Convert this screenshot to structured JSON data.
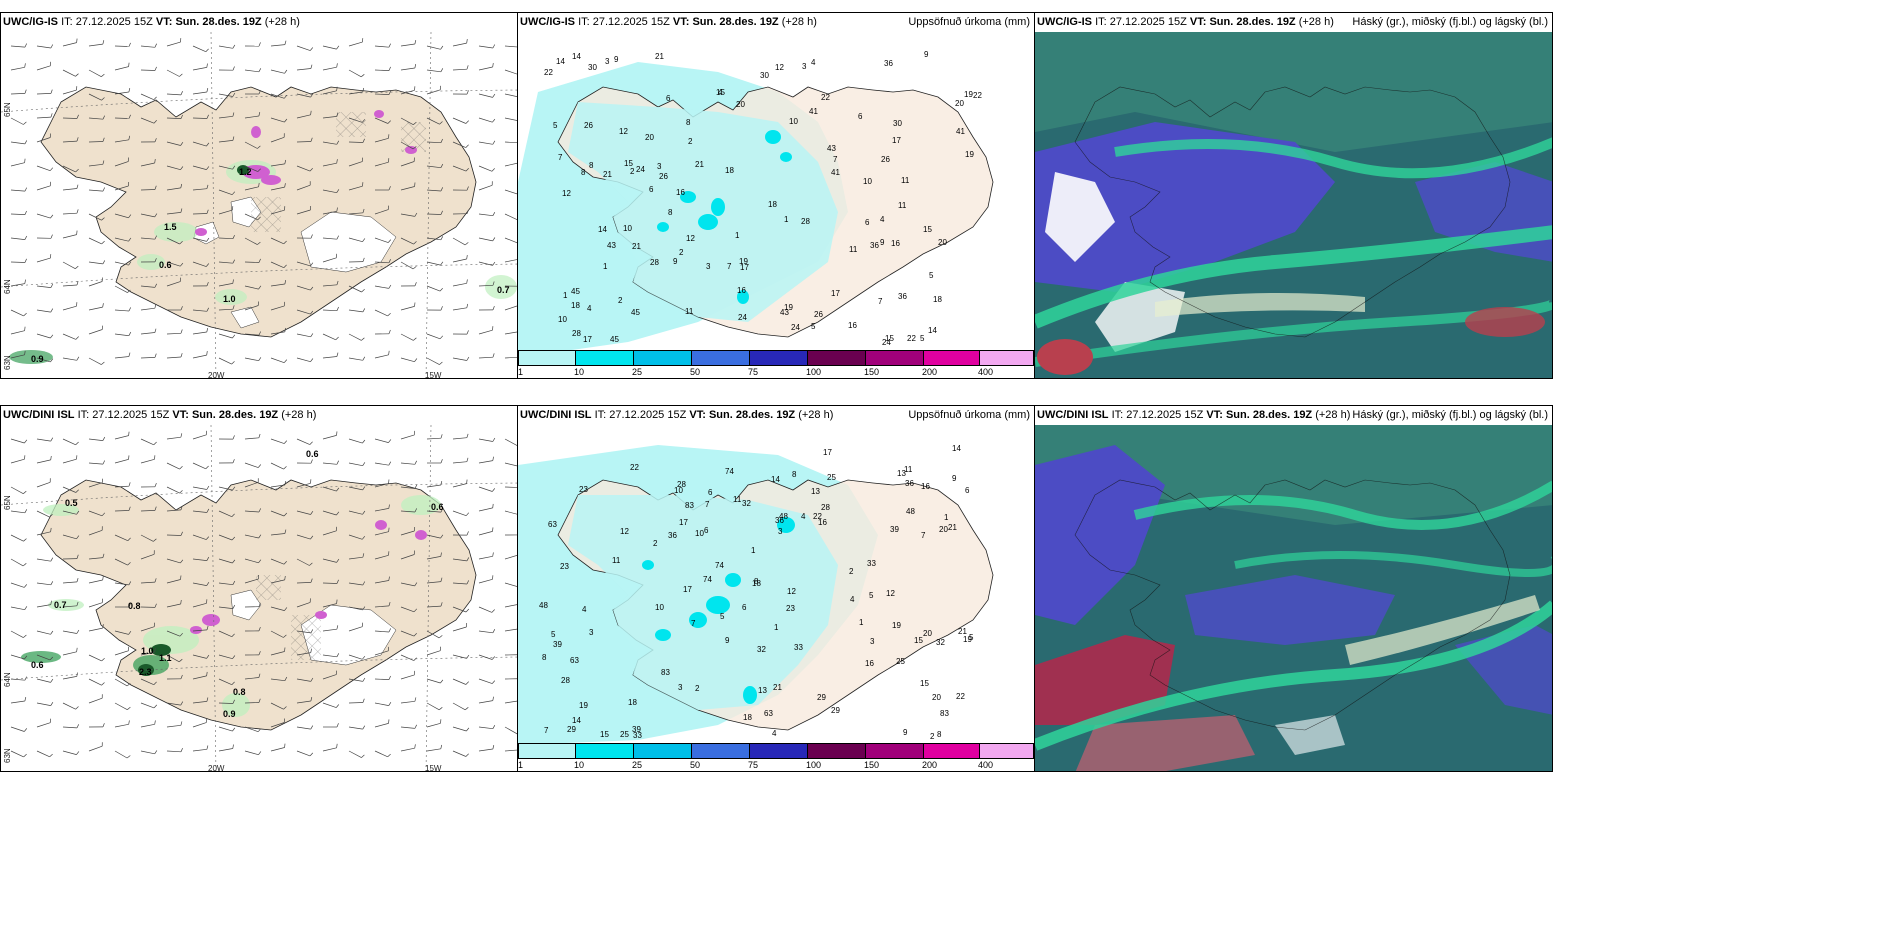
{
  "panels": [
    {
      "model": "UWC/IG-IS",
      "it_label": "IT:",
      "it_value": "27.12.2025 15Z",
      "vt_label": "VT:",
      "vt_value": "Sun. 28.des. 19Z",
      "lead": "(+28 h)",
      "right_title": "",
      "lat_labels": [
        "65N",
        "64N",
        "63N"
      ],
      "lon_labels": [
        "20W",
        "15W"
      ],
      "values": [
        "0.6",
        "1.5",
        "1.2",
        "1.0",
        "0.7",
        "0.9"
      ]
    },
    {
      "model": "UWC/IG-IS",
      "it_label": "IT:",
      "it_value": "27.12.2025 15Z",
      "vt_label": "VT:",
      "vt_value": "Sun. 28.des. 19Z",
      "lead": "(+28 h)",
      "right_title": "Uppsöfnuð úrkoma (mm)",
      "values": [
        "1",
        "2",
        "3",
        "4",
        "5",
        "6",
        "7",
        "8",
        "9",
        "10",
        "11",
        "12",
        "14",
        "15",
        "16",
        "17",
        "18",
        "19",
        "20",
        "21",
        "22",
        "24",
        "26",
        "28",
        "36",
        "41",
        "43",
        "45",
        "30"
      ]
    },
    {
      "model": "UWC/IG-IS",
      "it_label": "IT:",
      "it_value": "27.12.2025 15Z",
      "vt_label": "VT:",
      "vt_value": "Sun. 28.des. 19Z",
      "lead": "(+28 h)",
      "right_title": "Háský (gr.), miðský (fj.bl.) og lágský (bl.)"
    },
    {
      "model": "UWC/DINI ISL",
      "it_label": "IT:",
      "it_value": "27.12.2025 15Z",
      "vt_label": "VT:",
      "vt_value": "Sun. 28.des. 19Z",
      "lead": "(+28 h)",
      "right_title": "",
      "lat_labels": [
        "65N",
        "64N",
        "63N"
      ],
      "lon_labels": [
        "20W",
        "15W"
      ],
      "values": [
        "0.6",
        "0.5",
        "0.6",
        "0.7",
        "0.8",
        "0.6",
        "1.0",
        "1.1",
        "2.3",
        "0.8",
        "0.9"
      ]
    },
    {
      "model": "UWC/DINI ISL",
      "it_label": "IT:",
      "it_value": "27.12.2025 15Z",
      "vt_label": "VT:",
      "vt_value": "Sun. 28.des. 19Z",
      "lead": "(+28 h)",
      "right_title": "Uppsöfnuð úrkoma (mm)",
      "values": [
        "1",
        "2",
        "3",
        "4",
        "5",
        "6",
        "7",
        "8",
        "9",
        "10",
        "11",
        "12",
        "13",
        "14",
        "15",
        "16",
        "17",
        "18",
        "19",
        "20",
        "21",
        "22",
        "23",
        "25",
        "28",
        "29",
        "32",
        "33",
        "36",
        "39",
        "48",
        "63",
        "74",
        "83"
      ]
    },
    {
      "model": "UWC/DINI ISL",
      "it_label": "IT:",
      "it_value": "27.12.2025 15Z",
      "vt_label": "VT:",
      "vt_value": "Sun. 28.des. 19Z",
      "lead": "(+28 h)",
      "right_title": "Háský (gr.), miðský (fj.bl.) og lágský (bl.)"
    }
  ],
  "colorbar": {
    "labels": [
      "1",
      "10",
      "25",
      "50",
      "75",
      "100",
      "150",
      "200",
      "400"
    ],
    "colors": [
      "#b8f5f5",
      "#00e5ee",
      "#00bfe8",
      "#3a6ee0",
      "#2828b8",
      "#6a0050",
      "#a0007a",
      "#e000a0",
      "#f2a8f0"
    ]
  },
  "colors": {
    "land": "#efe1cd",
    "precip_light": "#b8f5f5",
    "precip_mid": "#00e5ee",
    "green_precip": "#bff0bf",
    "cloud_high": "#2fd49a",
    "cloud_mid": "#4c4cc4",
    "cloud_low": "#2a6a70",
    "cloud_red": "#b8404e"
  }
}
